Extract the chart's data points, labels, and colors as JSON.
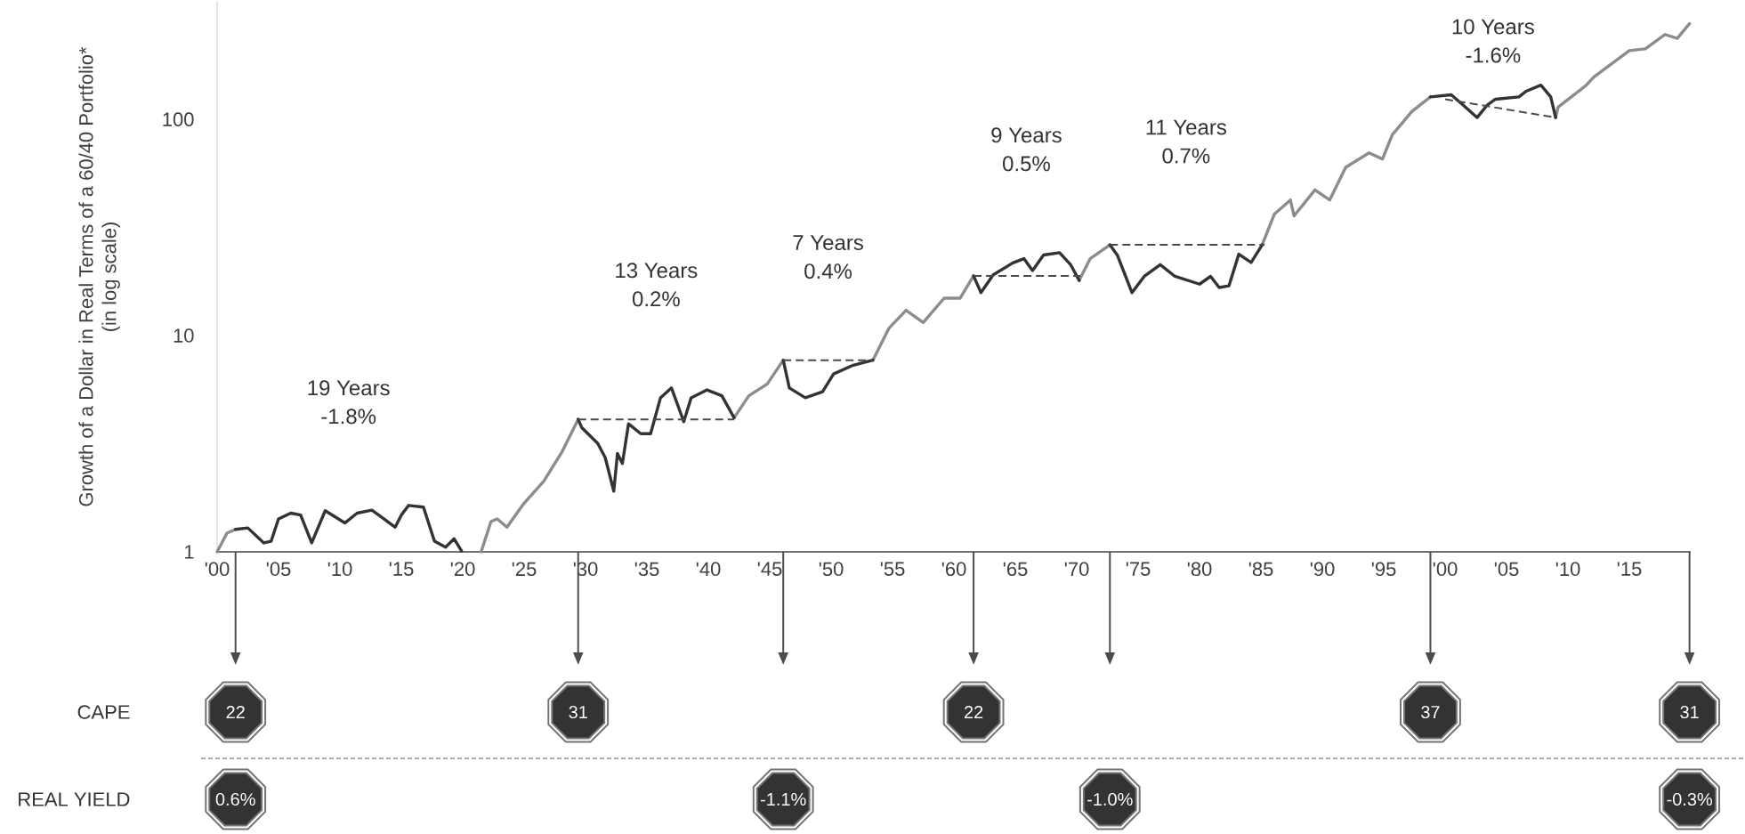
{
  "chart_data": {
    "type": "line",
    "ylabel": "Growth of a Dollar in Real Terms of a 60/40 Portfolio* (in log scale)",
    "xlim": [
      1900,
      2020
    ],
    "ylim": [
      1,
      350
    ],
    "log": "y",
    "xticks": [
      {
        "value": 1900,
        "label": "'00"
      },
      {
        "value": 1905,
        "label": "'05"
      },
      {
        "value": 1910,
        "label": "'10"
      },
      {
        "value": 1915,
        "label": "'15"
      },
      {
        "value": 1920,
        "label": "'20"
      },
      {
        "value": 1925,
        "label": "'25"
      },
      {
        "value": 1930,
        "label": "'30"
      },
      {
        "value": 1935,
        "label": "'35"
      },
      {
        "value": 1940,
        "label": "'40"
      },
      {
        "value": 1945,
        "label": "'45"
      },
      {
        "value": 1950,
        "label": "'50"
      },
      {
        "value": 1955,
        "label": "'55"
      },
      {
        "value": 1960,
        "label": "'60"
      },
      {
        "value": 1965,
        "label": "'65"
      },
      {
        "value": 1970,
        "label": "'70"
      },
      {
        "value": 1975,
        "label": "'75"
      },
      {
        "value": 1980,
        "label": "'80"
      },
      {
        "value": 1985,
        "label": "'85"
      },
      {
        "value": 1990,
        "label": "'90"
      },
      {
        "value": 1995,
        "label": "'95"
      },
      {
        "value": 2000,
        "label": "'00"
      },
      {
        "value": 2005,
        "label": "'05"
      },
      {
        "value": 2010,
        "label": "'10"
      },
      {
        "value": 2015,
        "label": "'15"
      }
    ],
    "yticks": [
      1,
      10,
      100
    ],
    "series": [
      {
        "color": "#8c8c8c",
        "x": [
          1900,
          1900.8,
          1901.5,
          1901.6,
          1921.5,
          1922.3,
          1922.8,
          1923.6,
          1925.0,
          1926.6,
          1928.1,
          1929.4,
          1929.5,
          1942.1,
          1943.3,
          1944.8,
          1946.1,
          1946.2,
          1953.4,
          1954.7,
          1956.1,
          1957.5,
          1959.2,
          1960.5,
          1961.6,
          1961.7,
          1970.2,
          1971.1,
          1972.7,
          1972.8,
          1985.1,
          1986.1,
          1987.4,
          1987.7,
          1989.4,
          1990.6,
          1991.9,
          1993.8,
          1994.9,
          1995.7,
          1997.3,
          1998.8,
          1998.9,
          2009.0,
          2009.2,
          2011.5,
          2012.1,
          2015.0,
          2016.3,
          2017.9,
          2018.9,
          2019.9
        ],
        "values": [
          1.0,
          1.22,
          1.27,
          null,
          1.0,
          1.38,
          1.42,
          1.3,
          1.68,
          2.12,
          2.91,
          4.1,
          null,
          4.17,
          5.27,
          5.98,
          7.7,
          null,
          7.7,
          10.8,
          13.1,
          11.5,
          14.9,
          14.9,
          18.9,
          null,
          18,
          22.7,
          26.3,
          null,
          26.3,
          36.5,
          42.4,
          35.8,
          47.2,
          42.4,
          60,
          70,
          65.6,
          84.9,
          109,
          127,
          null,
          102,
          114,
          144,
          157,
          208,
          212,
          247,
          237,
          277
        ]
      },
      {
        "color": "#333333",
        "x": [
          1901.5,
          1902.5,
          1903.8,
          1904.4,
          1905.0,
          1906.0,
          1906.8,
          1907.7,
          1908.8,
          1910.4,
          1911.4,
          1912.6,
          1913.6,
          1914.5,
          1915.0,
          1915.6,
          1916.8,
          1917.7,
          1918.6,
          1919.3,
          1919.9,
          1920.0,
          1929.4,
          1929.7,
          1931.0,
          1931.6,
          1932.3,
          1932.6,
          1933.0,
          1933.5,
          1934.5,
          1935.3,
          1936.1,
          1937.0,
          1938.0,
          1938.6,
          1939.9,
          1941.1,
          1942.1,
          1942.2,
          1946.1,
          1946.6,
          1947.9,
          1949.3,
          1950.2,
          1951.8,
          1953.4,
          1953.5,
          1961.6,
          1962.2,
          1963.2,
          1964.8,
          1965.7,
          1966.4,
          1967.3,
          1968.6,
          1969.5,
          1970.2,
          1970.3,
          1972.7,
          1973.3,
          1974.5,
          1975.5,
          1976.8,
          1978.0,
          1980.0,
          1980.9,
          1981.6,
          1982.4,
          1983.2,
          1984.2,
          1985.1,
          1985.2,
          1998.8,
          2000.5,
          2001.5,
          2002.6,
          2003.4,
          2004.1,
          2006.0,
          2006.6,
          2007.8,
          2008.6,
          2009.0
        ],
        "values": [
          1.27,
          1.29,
          1.1,
          1.12,
          1.42,
          1.51,
          1.48,
          1.1,
          1.55,
          1.36,
          1.51,
          1.56,
          1.42,
          1.3,
          1.48,
          1.64,
          1.61,
          1.12,
          1.05,
          1.15,
          1.01,
          null,
          4.1,
          3.75,
          3.17,
          2.73,
          1.91,
          2.85,
          2.56,
          3.91,
          3.52,
          3.52,
          5.15,
          5.73,
          4.0,
          5.15,
          5.61,
          5.27,
          4.17,
          null,
          7.7,
          5.73,
          5.16,
          5.5,
          6.65,
          7.3,
          7.7,
          null,
          18.9,
          15.8,
          19.1,
          21.7,
          22.7,
          20,
          23.6,
          24.2,
          21.3,
          18,
          null,
          26.3,
          23.6,
          15.8,
          18.8,
          21.3,
          18.8,
          17.3,
          18.8,
          16.7,
          17,
          23.8,
          21.8,
          26.3,
          null,
          127,
          130,
          116,
          102,
          116,
          124,
          127,
          135,
          144,
          127,
          102
        ]
      },
      {
        "color": "#4a4a4a",
        "line_style": "dashed",
        "x": [
          1929.4,
          1942.1,
          1942.2,
          1946.1,
          1953.4,
          1953.5,
          1961.6,
          1970.3,
          1970.4,
          1972.7,
          1985.3,
          1985.4,
          2000.0,
          2009.0
        ],
        "values": [
          4.1,
          4.1,
          null,
          7.7,
          7.7,
          null,
          18.9,
          18.9,
          null,
          26.3,
          26.3,
          null,
          124,
          102
        ]
      }
    ],
    "annotations": [
      "19 Years",
      "-1.8%",
      "13 Years",
      "0.2%",
      "7 Years",
      "0.4%",
      "9 Years",
      "0.5%",
      "11 Years",
      "0.7%",
      "10 Years",
      "-1.6%",
      "CAPE",
      "22",
      "31",
      "22",
      "37",
      "31",
      "REAL YIELD",
      "0.6%",
      "-1.1%",
      "-1.0%",
      "-0.3%"
    ]
  }
}
